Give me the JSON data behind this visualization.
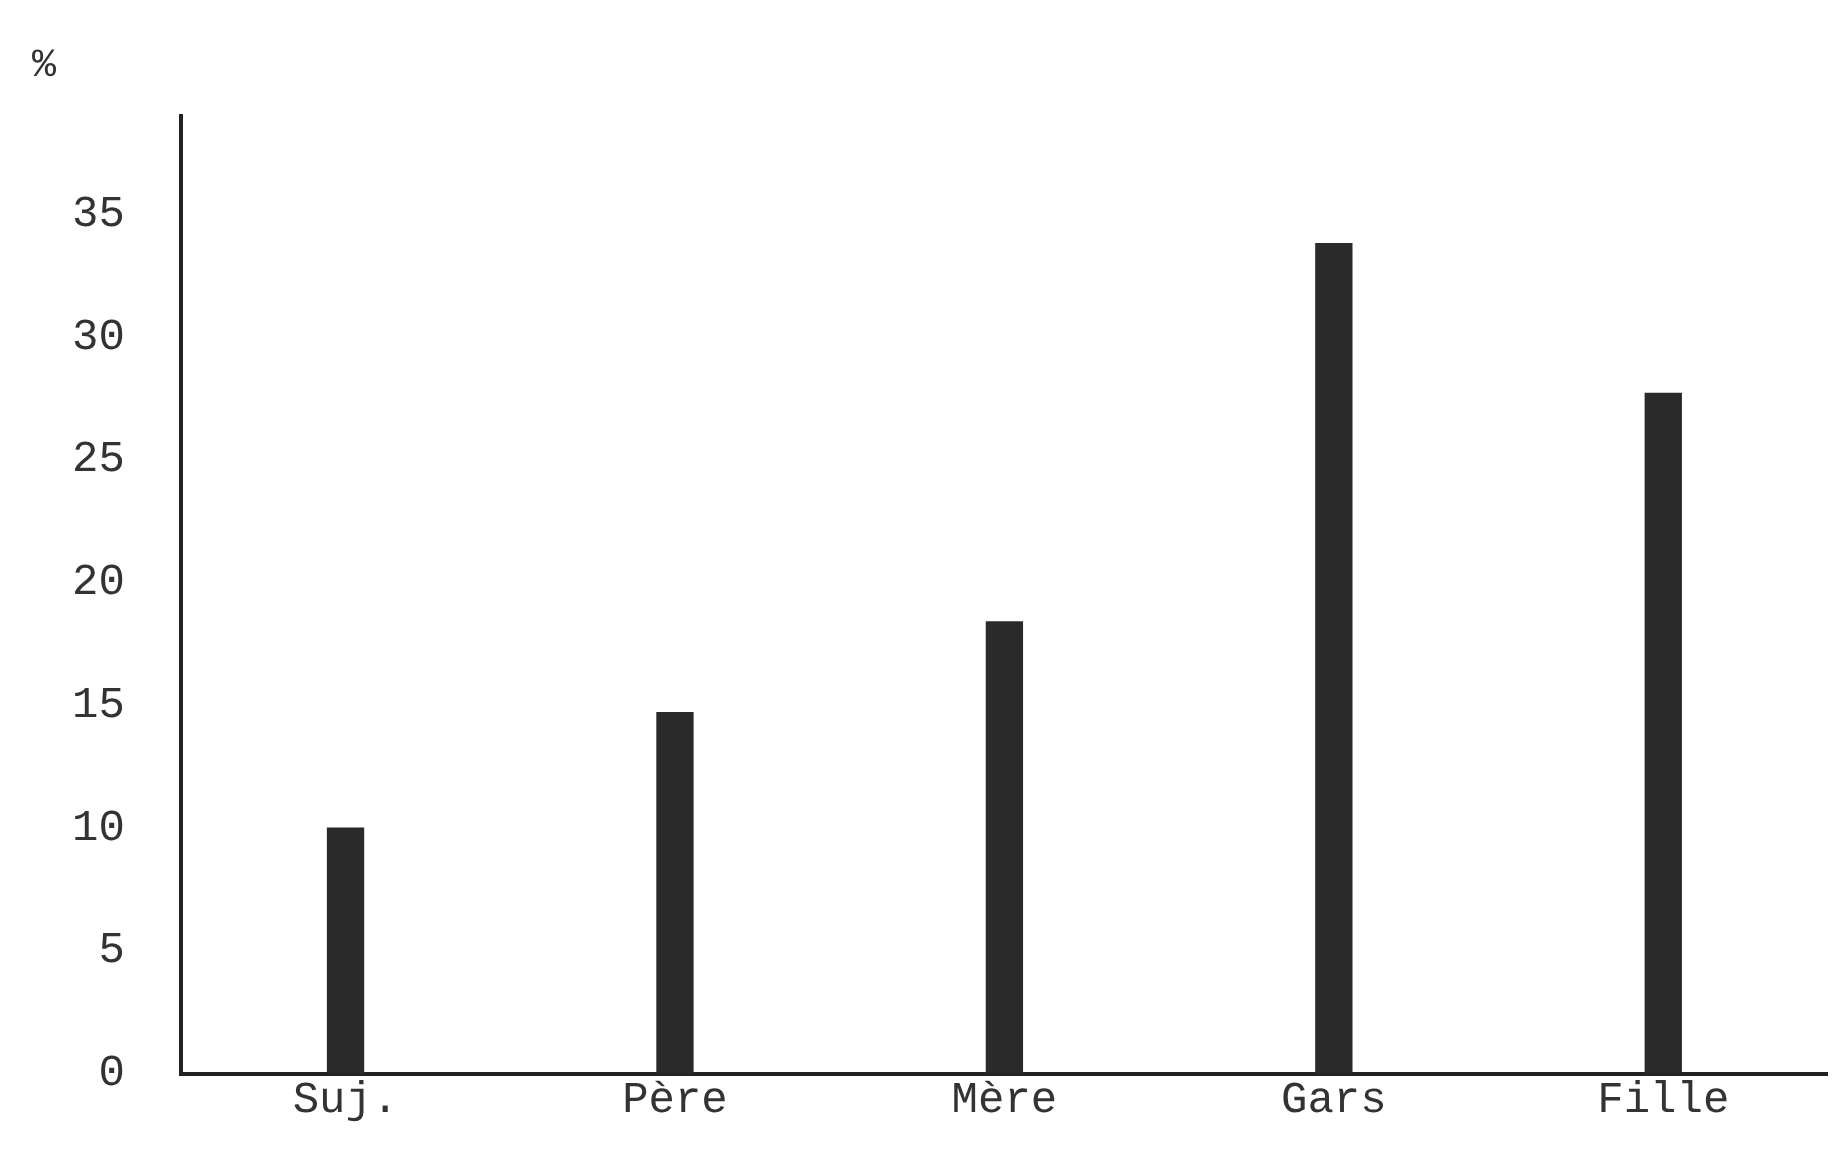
{
  "chart_data": {
    "type": "bar",
    "ylabel": "%",
    "categories": [
      "Suj.",
      "Père",
      "Mère",
      "Gars",
      "Fille"
    ],
    "values": [
      10,
      14.7,
      18.4,
      33.8,
      27.7
    ],
    "color": "#2a2a2a",
    "ylim": [
      0,
      39
    ],
    "yticks": [
      0,
      5,
      10,
      15,
      20,
      25,
      30,
      35
    ],
    "grid": false,
    "legend": false
  }
}
